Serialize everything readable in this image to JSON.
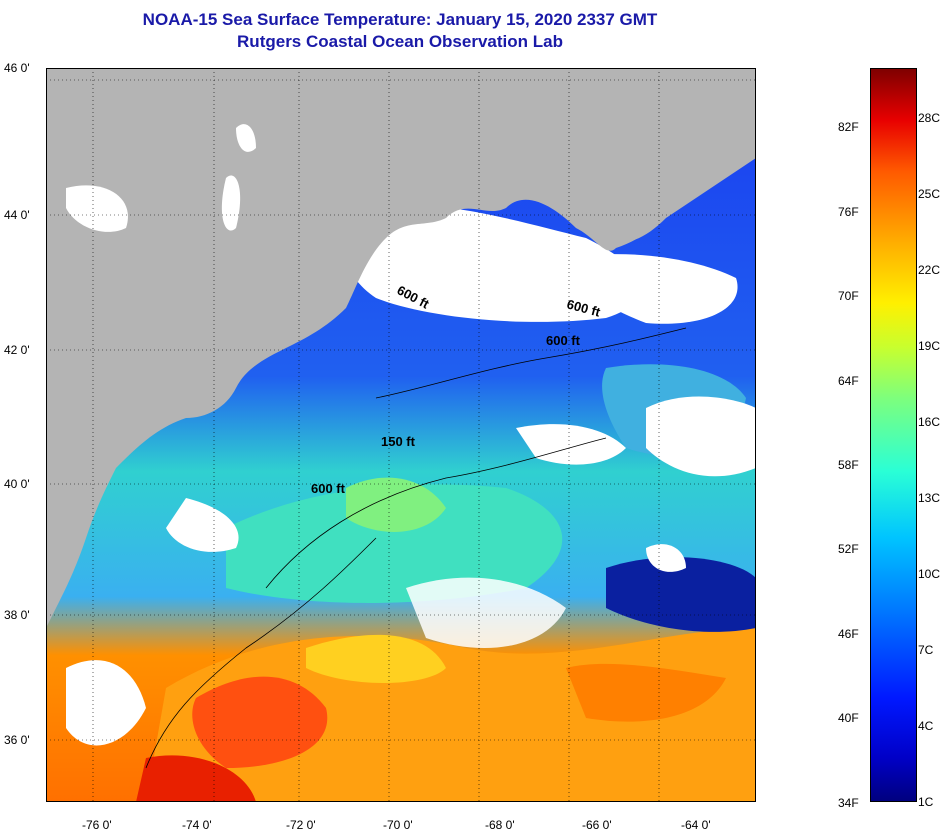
{
  "title": {
    "line1": "NOAA-15 Sea Surface Temperature:  January 15, 2020 2337 GMT",
    "line2": "Rutgers Coastal Ocean Observation Lab"
  },
  "map": {
    "region": "Mid-Atlantic Bight and Gulf of Maine",
    "land_color": "#b4b4b4",
    "cloud_color": "#ffffff",
    "lat_labels": [
      "46 0'",
      "44 0'",
      "42 0'",
      "40 0'",
      "38 0'",
      "36 0'"
    ],
    "lon_labels": [
      "-76 0'",
      "-74 0'",
      "-72 0'",
      "-70 0'",
      "-68 0'",
      "-66 0'",
      "-64 0'"
    ],
    "isobath_labels": [
      "600 ft",
      "600 ft",
      "600 ft",
      "150 ft",
      "600 ft"
    ]
  },
  "colorbar": {
    "fahrenheit_labels": [
      "82F",
      "76F",
      "70F",
      "64F",
      "58F",
      "52F",
      "46F",
      "40F",
      "34F"
    ],
    "celsius_labels": [
      "28C",
      "25C",
      "22C",
      "19C",
      "16C",
      "13C",
      "10C",
      "7C",
      "4C",
      "1C"
    ],
    "range_c": [
      1,
      30
    ]
  }
}
